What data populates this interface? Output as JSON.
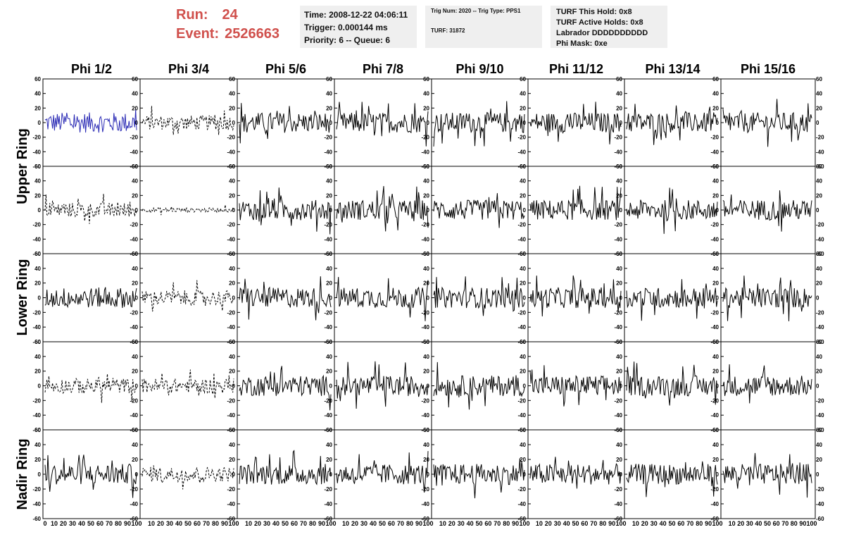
{
  "header": {
    "run_label": "Run:",
    "run_value": "24",
    "event_label": "Event:",
    "event_value": "2526663",
    "time": "Time: 2008-12-22 04:06:11",
    "trigger": "Trigger: 0.000144 ms",
    "priority": "Priority: 6 -- Queue: 6",
    "trig_num": "Trig Num: 2020 -- Trig Type: PPS1",
    "turf": "TURF: 31872",
    "turf_hold": "TURF This Hold: 0x8",
    "turf_active": "TURF Active Holds: 0x8",
    "labrador": "Labrador DDDDDDDDDD",
    "phi_mask": "Phi Mask: 0xe"
  },
  "columns": [
    "Phi 1/2",
    "Phi 3/4",
    "Phi 5/6",
    "Phi 7/8",
    "Phi 9/10",
    "Phi 11/12",
    "Phi 13/14",
    "Phi 15/16"
  ],
  "ring_labels": [
    "Upper Ring",
    "Lower Ring",
    "Nadir Ring"
  ],
  "y_ticks": [
    "60",
    "40",
    "20",
    "0",
    "-20",
    "-40",
    "-60"
  ],
  "x_ticks_left": [
    "0",
    "10",
    "20",
    "30",
    "40",
    "50",
    "60",
    "70",
    "80",
    "90",
    "100"
  ],
  "x_ticks_other": [
    "10",
    "20",
    "30",
    "40",
    "50",
    "60",
    "70",
    "80",
    "90",
    "100"
  ],
  "chart_data": {
    "type": "line",
    "ylim": [
      -60,
      60
    ],
    "xlim": [
      0,
      100
    ],
    "rows": 5,
    "cols": 8,
    "styles": [
      [
        "blue",
        "dashed",
        "solid",
        "solid",
        "solid",
        "solid",
        "solid",
        "solid"
      ],
      [
        "dashed",
        "dashed-small",
        "solid",
        "solid",
        "solid",
        "solid",
        "solid",
        "solid"
      ],
      [
        "solid",
        "dashed",
        "solid",
        "solid",
        "solid",
        "solid",
        "solid",
        "solid"
      ],
      [
        "dashed",
        "dashed",
        "solid",
        "solid",
        "solid",
        "solid",
        "solid",
        "solid"
      ],
      [
        "solid",
        "dashed",
        "solid",
        "solid",
        "solid",
        "solid",
        "solid",
        "solid"
      ]
    ],
    "colors": {
      "blue": "#2b2bb5",
      "black": "#000000"
    }
  }
}
